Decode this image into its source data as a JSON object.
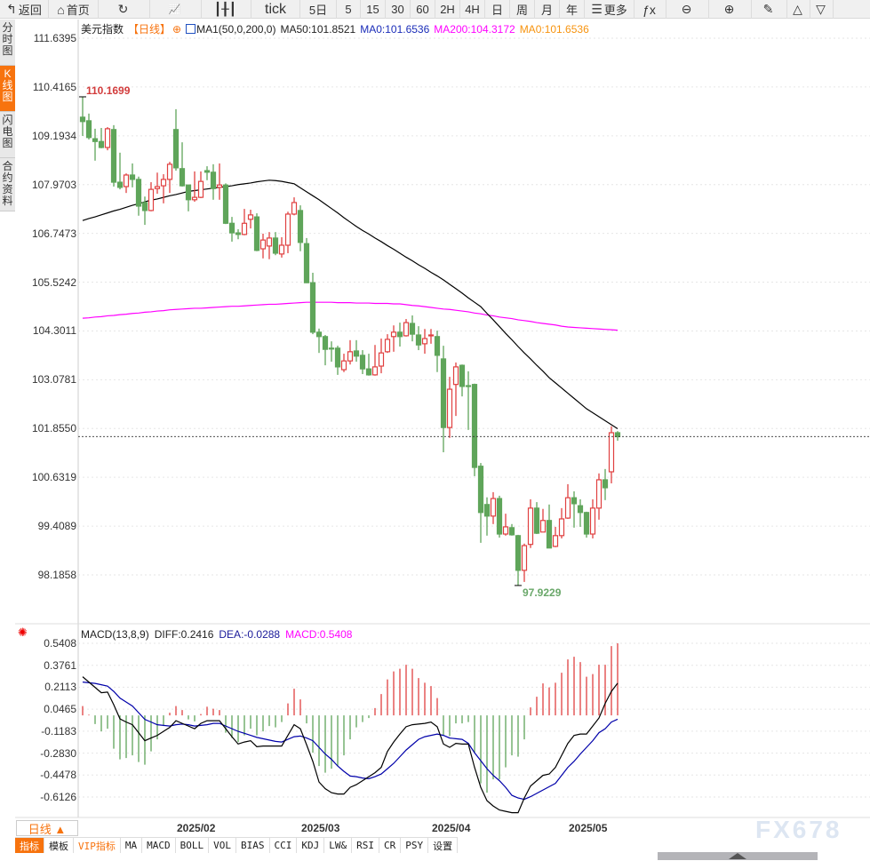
{
  "toolbar": {
    "items": [
      {
        "label": "返回",
        "icon": "back-arrow-icon",
        "w": 55
      },
      {
        "label": "首页",
        "icon": "home-icon",
        "w": 56
      },
      {
        "label": "",
        "icon": "refresh-icon",
        "w": 58
      },
      {
        "label": "",
        "icon": "bar-chart-icon",
        "w": 58
      },
      {
        "label": "",
        "icon": "candlestick-icon",
        "w": 56
      },
      {
        "label": "tick",
        "w": 55
      },
      {
        "label": "5日",
        "w": 41
      },
      {
        "label": "5",
        "w": 27
      },
      {
        "label": "15",
        "w": 28
      },
      {
        "label": "30",
        "w": 28
      },
      {
        "label": "60",
        "w": 28
      },
      {
        "label": "2H",
        "w": 28
      },
      {
        "label": "4H",
        "w": 28
      },
      {
        "label": "日",
        "w": 28
      },
      {
        "label": "周",
        "w": 28
      },
      {
        "label": "月",
        "w": 28
      },
      {
        "label": "年",
        "w": 28
      },
      {
        "label": "更多",
        "icon": "menu-icon",
        "w": 56
      },
      {
        "label": "",
        "icon": "fx-icon",
        "w": 36
      },
      {
        "label": "",
        "icon": "zoom-out-icon",
        "w": 48
      },
      {
        "label": "",
        "icon": "zoom-in-icon",
        "w": 48
      },
      {
        "label": "",
        "icon": "pen-icon",
        "w": 40
      },
      {
        "label": "",
        "icon": "triangle-up-icon",
        "w": 26
      },
      {
        "label": "",
        "icon": "triangle-down-icon",
        "w": 26
      }
    ]
  },
  "left_tabs": [
    {
      "label": "分时图",
      "active": false
    },
    {
      "label": "K线图",
      "active": true
    },
    {
      "label": "闪电图",
      "active": false
    },
    {
      "label": "合约资料",
      "active": false
    }
  ],
  "legend": {
    "symbol": "美元指数",
    "period": "【日线】",
    "ma_config": "MA1(50,0,200,0)",
    "ma50": "MA50:101.8521",
    "ma0_a": "MA0:101.6536",
    "ma200": "MA200:104.3172",
    "ma0_b": "MA0:101.6536"
  },
  "macd_legend": {
    "name": "MACD(13,8,9)",
    "diff": "DIFF:0.2416",
    "dea": "DEA:-0.0288",
    "macd": "MACD:0.5408"
  },
  "colors": {
    "up": "#e04040",
    "down": "#5fa55a",
    "ma50": "#000000",
    "ma200": "#ff00ff",
    "diff": "#000000",
    "dea": "#0000aa",
    "accent": "#f7730e",
    "last_price_line": "#1e6fd0"
  },
  "chart_data": [
    {
      "type": "candlestick",
      "price_ticks": [
        111.6395,
        110.4165,
        109.1934,
        107.9703,
        106.7473,
        105.5242,
        104.3011,
        103.0781,
        101.855,
        100.6319,
        99.4089,
        98.1858
      ],
      "x_ticks": [
        "2025/02",
        "2025/03",
        "2025/04",
        "2025/05"
      ],
      "high_label": "110.1699",
      "low_label": "97.9229",
      "last_price": 101.6536,
      "grid": true,
      "ohlc": [
        [
          109.66,
          110.17,
          109.19,
          109.55
        ],
        [
          109.57,
          109.75,
          109.1,
          109.15
        ],
        [
          109.12,
          109.37,
          108.57,
          109.05
        ],
        [
          109.05,
          109.39,
          108.88,
          108.9
        ],
        [
          108.9,
          109.41,
          108.83,
          109.37
        ],
        [
          109.35,
          109.46,
          107.92,
          108.03
        ],
        [
          108.03,
          108.77,
          107.85,
          107.9
        ],
        [
          107.92,
          108.25,
          107.76,
          108.21
        ],
        [
          108.21,
          108.5,
          107.9,
          108.1
        ],
        [
          108.1,
          108.17,
          107.19,
          107.43
        ],
        [
          107.52,
          107.67,
          106.96,
          107.32
        ],
        [
          107.32,
          108.03,
          107.3,
          107.85
        ],
        [
          107.87,
          108.27,
          107.74,
          107.92
        ],
        [
          107.94,
          108.23,
          107.5,
          108.1
        ],
        [
          108.1,
          108.54,
          107.76,
          108.48
        ],
        [
          109.35,
          109.86,
          108.32,
          108.39
        ],
        [
          108.37,
          109.03,
          107.92,
          107.94
        ],
        [
          107.96,
          107.96,
          107.3,
          107.59
        ],
        [
          107.59,
          108.3,
          107.54,
          107.65
        ],
        [
          107.65,
          108.3,
          107.63,
          108.05
        ],
        [
          108.32,
          108.43,
          108.08,
          108.28
        ],
        [
          108.28,
          108.48,
          107.59,
          107.87
        ],
        [
          107.9,
          108.5,
          107.59,
          107.96
        ],
        [
          107.96,
          108.0,
          106.98,
          107.0
        ],
        [
          107.0,
          107.16,
          106.54,
          106.76
        ],
        [
          106.76,
          106.85,
          106.6,
          106.72
        ],
        [
          106.72,
          107.36,
          106.7,
          107.0
        ],
        [
          107.1,
          107.34,
          106.87,
          107.21
        ],
        [
          107.16,
          107.25,
          106.3,
          106.32
        ],
        [
          106.36,
          106.74,
          106.12,
          106.58
        ],
        [
          106.43,
          106.78,
          106.1,
          106.63
        ],
        [
          106.63,
          106.78,
          106.2,
          106.25
        ],
        [
          106.23,
          106.65,
          106.14,
          106.45
        ],
        [
          106.45,
          107.29,
          106.25,
          107.23
        ],
        [
          107.23,
          107.65,
          107.2,
          107.52
        ],
        [
          107.32,
          107.45,
          106.3,
          106.52
        ],
        [
          106.49,
          106.63,
          105.5,
          105.51
        ],
        [
          105.51,
          105.76,
          104.22,
          104.27
        ],
        [
          104.27,
          104.36,
          103.75,
          104.16
        ],
        [
          104.16,
          104.2,
          103.44,
          103.84
        ],
        [
          103.87,
          104.04,
          103.53,
          103.86
        ],
        [
          103.87,
          103.93,
          103.2,
          103.4
        ],
        [
          103.33,
          103.73,
          103.27,
          103.55
        ],
        [
          103.55,
          104.07,
          103.46,
          103.78
        ],
        [
          103.8,
          104.07,
          103.53,
          103.67
        ],
        [
          103.69,
          103.82,
          103.22,
          103.35
        ],
        [
          103.35,
          103.73,
          103.18,
          103.2
        ],
        [
          103.2,
          103.95,
          103.18,
          103.4
        ],
        [
          103.42,
          104.11,
          103.24,
          103.75
        ],
        [
          103.78,
          104.22,
          103.75,
          104.09
        ],
        [
          104.16,
          104.44,
          103.78,
          104.27
        ],
        [
          104.27,
          104.51,
          103.91,
          104.16
        ],
        [
          104.18,
          104.6,
          104.16,
          104.51
        ],
        [
          104.49,
          104.69,
          104.04,
          104.22
        ],
        [
          104.2,
          104.42,
          103.82,
          103.95
        ],
        [
          103.98,
          104.35,
          103.73,
          104.11
        ],
        [
          104.18,
          104.35,
          103.98,
          104.2
        ],
        [
          104.16,
          104.31,
          103.27,
          103.69
        ],
        [
          103.6,
          103.93,
          101.26,
          101.88
        ],
        [
          101.88,
          103.15,
          101.62,
          102.84
        ],
        [
          102.96,
          103.51,
          102.17,
          103.4
        ],
        [
          103.44,
          103.46,
          102.66,
          102.91
        ],
        [
          102.93,
          103.29,
          101.82,
          102.91
        ],
        [
          102.96,
          102.98,
          100.66,
          100.88
        ],
        [
          100.91,
          100.99,
          98.99,
          99.75
        ],
        [
          99.95,
          100.13,
          99.17,
          99.66
        ],
        [
          99.66,
          100.26,
          99.46,
          100.1
        ],
        [
          100.1,
          100.17,
          99.12,
          99.21
        ],
        [
          99.21,
          99.72,
          99.17,
          99.39
        ],
        [
          99.37,
          99.46,
          99.17,
          99.19
        ],
        [
          99.17,
          99.19,
          97.92,
          98.3
        ],
        [
          98.3,
          98.97,
          98.01,
          98.92
        ],
        [
          98.95,
          100.08,
          98.86,
          99.86
        ],
        [
          99.86,
          100.01,
          99.21,
          99.23
        ],
        [
          99.26,
          99.84,
          99.26,
          99.55
        ],
        [
          99.55,
          99.95,
          98.86,
          98.86
        ],
        [
          98.9,
          99.39,
          98.88,
          99.17
        ],
        [
          99.17,
          99.86,
          99.1,
          99.59
        ],
        [
          99.61,
          100.46,
          99.59,
          100.12
        ],
        [
          100.12,
          100.28,
          99.37,
          99.97
        ],
        [
          99.92,
          100.08,
          99.39,
          99.75
        ],
        [
          99.75,
          99.77,
          99.12,
          99.21
        ],
        [
          99.21,
          100.08,
          99.1,
          99.86
        ],
        [
          99.86,
          100.73,
          99.57,
          100.57
        ],
        [
          100.57,
          100.84,
          100.06,
          100.37
        ],
        [
          100.77,
          101.91,
          100.48,
          101.75
        ],
        [
          101.75,
          101.79,
          101.55,
          101.65
        ]
      ],
      "ma50": [
        107.07,
        107.12,
        107.16,
        107.21,
        107.26,
        107.31,
        107.35,
        107.4,
        107.45,
        107.49,
        107.54,
        107.58,
        107.61,
        107.65,
        107.69,
        107.72,
        107.76,
        107.8,
        107.82,
        107.84,
        107.86,
        107.88,
        107.9,
        107.92,
        107.94,
        107.97,
        107.99,
        108.01,
        108.04,
        108.06,
        108.08,
        108.07,
        108.05,
        108.02,
        107.99,
        107.89,
        107.79,
        107.69,
        107.59,
        107.48,
        107.37,
        107.26,
        107.14,
        107.03,
        106.92,
        106.82,
        106.73,
        106.63,
        106.54,
        106.44,
        106.35,
        106.25,
        106.15,
        106.06,
        105.96,
        105.87,
        105.77,
        105.68,
        105.58,
        105.47,
        105.36,
        105.25,
        105.13,
        105.02,
        104.91,
        104.74,
        104.58,
        104.41,
        104.24,
        104.08,
        103.91,
        103.75,
        103.6,
        103.44,
        103.29,
        103.13,
        103.0,
        102.87,
        102.74,
        102.61,
        102.48,
        102.35,
        102.25,
        102.15,
        102.05,
        101.95,
        101.85
      ],
      "ma200": [
        104.62,
        104.63,
        104.65,
        104.66,
        104.68,
        104.69,
        104.71,
        104.72,
        104.74,
        104.75,
        104.77,
        104.78,
        104.8,
        104.81,
        104.83,
        104.84,
        104.85,
        104.86,
        104.87,
        104.87,
        104.88,
        104.89,
        104.9,
        104.91,
        104.92,
        104.92,
        104.93,
        104.94,
        104.95,
        104.96,
        104.97,
        104.97,
        104.98,
        104.99,
        105.0,
        105.01,
        105.02,
        105.02,
        105.02,
        105.02,
        105.02,
        105.01,
        105.01,
        105.01,
        105.0,
        105.0,
        105.0,
        104.99,
        104.99,
        104.99,
        104.98,
        104.98,
        104.96,
        104.94,
        104.93,
        104.91,
        104.89,
        104.87,
        104.85,
        104.84,
        104.82,
        104.8,
        104.78,
        104.75,
        104.73,
        104.7,
        104.68,
        104.65,
        104.63,
        104.61,
        104.58,
        104.56,
        104.54,
        104.51,
        104.49,
        104.47,
        104.45,
        104.42,
        104.4,
        104.39,
        104.38,
        104.37,
        104.36,
        104.35,
        104.34,
        104.33,
        104.32
      ]
    },
    {
      "type": "bar+line",
      "name": "MACD",
      "y_ticks": [
        0.5408,
        0.3761,
        0.2113,
        0.0465,
        -0.1183,
        -0.283,
        -0.4478,
        -0.6126
      ],
      "macd": [
        0.07,
        0.005,
        -0.065,
        -0.12,
        -0.1,
        -0.25,
        -0.33,
        -0.32,
        -0.3,
        -0.35,
        -0.37,
        -0.27,
        -0.18,
        -0.08,
        0.02,
        0.07,
        0.04,
        -0.03,
        -0.045,
        0.01,
        0.065,
        0.05,
        0.04,
        -0.13,
        -0.17,
        -0.2,
        -0.15,
        -0.1,
        -0.15,
        -0.12,
        -0.08,
        -0.09,
        -0.05,
        0.09,
        0.2,
        0.12,
        -0.06,
        -0.28,
        -0.38,
        -0.43,
        -0.4,
        -0.38,
        -0.3,
        -0.18,
        -0.09,
        -0.05,
        -0.02,
        0.055,
        0.16,
        0.27,
        0.33,
        0.35,
        0.38,
        0.35,
        0.28,
        0.245,
        0.22,
        0.13,
        -0.15,
        -0.155,
        -0.06,
        -0.06,
        -0.05,
        -0.28,
        -0.51,
        -0.58,
        -0.48,
        -0.48,
        -0.39,
        -0.3,
        -0.31,
        -0.18,
        0.06,
        0.14,
        0.24,
        0.21,
        0.245,
        0.32,
        0.42,
        0.44,
        0.4,
        0.29,
        0.31,
        0.38,
        0.38,
        0.52,
        0.5408
      ],
      "diff": [
        0.29,
        0.25,
        0.21,
        0.17,
        0.175,
        0.08,
        -0.026,
        -0.05,
        -0.07,
        -0.13,
        -0.19,
        -0.17,
        -0.15,
        -0.12,
        -0.09,
        -0.04,
        -0.06,
        -0.08,
        -0.1,
        -0.06,
        -0.04,
        -0.04,
        -0.04,
        -0.1,
        -0.16,
        -0.215,
        -0.2,
        -0.19,
        -0.235,
        -0.23,
        -0.23,
        -0.23,
        -0.23,
        -0.15,
        -0.07,
        -0.1,
        -0.22,
        -0.345,
        -0.5,
        -0.55,
        -0.58,
        -0.59,
        -0.59,
        -0.54,
        -0.52,
        -0.49,
        -0.46,
        -0.43,
        -0.39,
        -0.27,
        -0.2,
        -0.14,
        -0.085,
        -0.07,
        -0.065,
        -0.06,
        -0.05,
        -0.085,
        -0.215,
        -0.24,
        -0.21,
        -0.215,
        -0.215,
        -0.39,
        -0.54,
        -0.64,
        -0.68,
        -0.71,
        -0.72,
        -0.73,
        -0.73,
        -0.62,
        -0.53,
        -0.49,
        -0.45,
        -0.44,
        -0.39,
        -0.3,
        -0.21,
        -0.15,
        -0.14,
        -0.14,
        -0.08,
        -0.02,
        0.09,
        0.18,
        0.2416
      ],
      "dea": [
        0.25,
        0.245,
        0.24,
        0.23,
        0.22,
        0.18,
        0.13,
        0.1,
        0.07,
        0.02,
        -0.03,
        -0.05,
        -0.07,
        -0.075,
        -0.08,
        -0.07,
        -0.065,
        -0.07,
        -0.08,
        -0.075,
        -0.07,
        -0.06,
        -0.06,
        -0.08,
        -0.1,
        -0.12,
        -0.135,
        -0.15,
        -0.165,
        -0.175,
        -0.185,
        -0.195,
        -0.2,
        -0.18,
        -0.16,
        -0.155,
        -0.17,
        -0.19,
        -0.24,
        -0.29,
        -0.33,
        -0.38,
        -0.42,
        -0.455,
        -0.46,
        -0.47,
        -0.475,
        -0.46,
        -0.44,
        -0.4,
        -0.36,
        -0.31,
        -0.26,
        -0.22,
        -0.18,
        -0.16,
        -0.15,
        -0.14,
        -0.15,
        -0.17,
        -0.175,
        -0.18,
        -0.21,
        -0.28,
        -0.34,
        -0.4,
        -0.45,
        -0.49,
        -0.54,
        -0.6,
        -0.62,
        -0.63,
        -0.61,
        -0.585,
        -0.56,
        -0.535,
        -0.51,
        -0.45,
        -0.39,
        -0.345,
        -0.29,
        -0.24,
        -0.19,
        -0.13,
        -0.1,
        -0.05,
        -0.0288
      ]
    }
  ],
  "footer": {
    "period_button": "日线 ▲",
    "tabs": [
      {
        "label": "指标",
        "active": true
      },
      {
        "label": "模板"
      },
      {
        "label": "VIP指标",
        "vip": true
      },
      {
        "label": "MA"
      },
      {
        "label": "MACD"
      },
      {
        "label": "BOLL"
      },
      {
        "label": "VOL"
      },
      {
        "label": "BIAS"
      },
      {
        "label": "CCI"
      },
      {
        "label": "KDJ"
      },
      {
        "label": "LW&"
      },
      {
        "label": "RSI"
      },
      {
        "label": "CR"
      },
      {
        "label": "PSY"
      },
      {
        "label": "设置"
      }
    ],
    "watermark": "FX678"
  }
}
